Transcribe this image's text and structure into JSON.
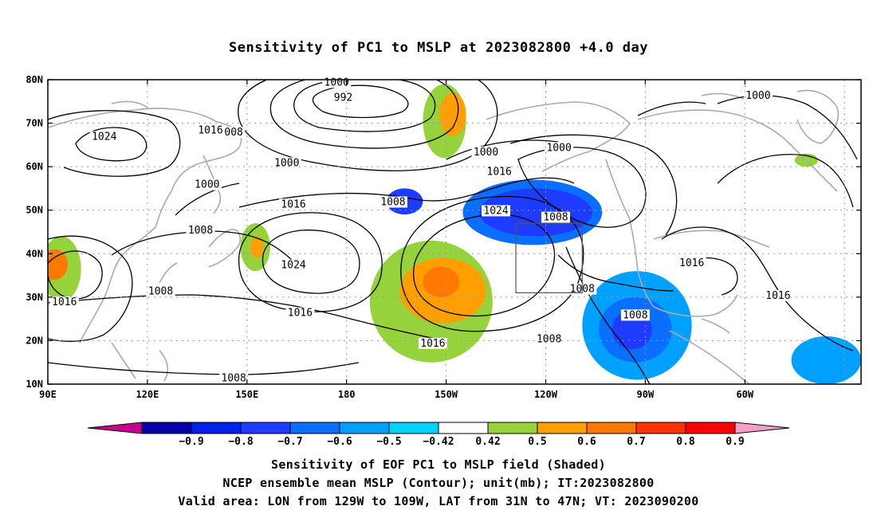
{
  "title": "Sensitivity of PC1 to MSLP at 2023082800 +4.0 day",
  "lat_labels": [
    "80N",
    "70N",
    "60N",
    "50N",
    "40N",
    "30N",
    "20N",
    "10N"
  ],
  "lon_labels": [
    "90E",
    "120E",
    "150E",
    "180",
    "150W",
    "120W",
    "90W",
    "60W"
  ],
  "contour_labels": [
    {
      "t": "1000",
      "lon": 177,
      "lat": 79
    },
    {
      "t": "992",
      "lon": 179,
      "lat": 75.5
    },
    {
      "t": "1016",
      "lon": 139,
      "lat": 68
    },
    {
      "t": "008",
      "lon": 146,
      "lat": 67.5
    },
    {
      "t": "1024",
      "lon": 107,
      "lat": 66.5
    },
    {
      "t": "1000",
      "lon": 162,
      "lat": 60.5
    },
    {
      "t": "1000",
      "lon": 138,
      "lat": 55.5
    },
    {
      "t": "1016",
      "lon": 164,
      "lat": 51
    },
    {
      "t": "1008",
      "lon": 194,
      "lat": 51.5
    },
    {
      "t": "1008",
      "lon": 136,
      "lat": 45
    },
    {
      "t": "1024",
      "lon": 164,
      "lat": 37
    },
    {
      "t": "1016",
      "lon": 95,
      "lat": 28.5
    },
    {
      "t": "1008",
      "lon": 124,
      "lat": 31
    },
    {
      "t": "1016",
      "lon": 166,
      "lat": 26
    },
    {
      "t": "1000",
      "lon": 222,
      "lat": 63
    },
    {
      "t": "1016",
      "lon": 226,
      "lat": 58.5
    },
    {
      "t": "1024",
      "lon": 225,
      "lat": 49.5
    },
    {
      "t": "1016",
      "lon": 206,
      "lat": 19
    },
    {
      "t": "1008",
      "lon": 146,
      "lat": 11
    },
    {
      "t": "1000",
      "lon": 244,
      "lat": 64
    },
    {
      "t": "1008",
      "lon": 243,
      "lat": 48
    },
    {
      "t": "1008",
      "lon": 251,
      "lat": 31.5
    },
    {
      "t": "1008",
      "lon": 241,
      "lat": 20
    },
    {
      "t": "1008",
      "lon": 267,
      "lat": 25.5
    },
    {
      "t": "1016",
      "lon": 284,
      "lat": 37.5
    },
    {
      "t": "1016",
      "lon": 310,
      "lat": 30
    },
    {
      "t": "1000",
      "lon": 304,
      "lat": 76
    }
  ],
  "colorbar": {
    "labels": [
      "−0.9",
      "−0.8",
      "−0.7",
      "−0.6",
      "−0.5",
      "−0.42",
      "0.42",
      "0.5",
      "0.6",
      "0.7",
      "0.8",
      "0.9"
    ],
    "colors": [
      "#0000aa",
      "#0022e8",
      "#1e3cff",
      "#0a6eff",
      "#00a0ff",
      "#00d2ff",
      "#ffffff",
      "#96d23c",
      "#ffa000",
      "#ff7800",
      "#ff3200",
      "#ff0000"
    ],
    "low_color": "#c8008c",
    "high_color": "#f5a0c8"
  },
  "shaded_regions": [
    {
      "c": "#96d23c",
      "lon": [
        203,
        216
      ],
      "lat": [
        62,
        79
      ]
    },
    {
      "c": "#ffa000",
      "lon": [
        208,
        216
      ],
      "lat": [
        67,
        77
      ]
    },
    {
      "c": "#96d23c",
      "lon": [
        148,
        157
      ],
      "lat": [
        36,
        47
      ]
    },
    {
      "c": "#ffa000",
      "lon": [
        151,
        155
      ],
      "lat": [
        39,
        44
      ]
    },
    {
      "c": "#96d23c",
      "lon": [
        88,
        100
      ],
      "lat": [
        29,
        44
      ]
    },
    {
      "c": "#ff7800",
      "lon": [
        88,
        96
      ],
      "lat": [
        34,
        41
      ]
    },
    {
      "c": "#96d23c",
      "lon": [
        187,
        224
      ],
      "lat": [
        15,
        43
      ]
    },
    {
      "c": "#ffa000",
      "lon": [
        196,
        222
      ],
      "lat": [
        24,
        39
      ]
    },
    {
      "c": "#ff7800",
      "lon": [
        203,
        214
      ],
      "lat": [
        30,
        37
      ]
    },
    {
      "c": "#1e3cff",
      "lon": [
        192,
        203
      ],
      "lat": [
        49,
        55
      ]
    },
    {
      "c": "#0a6eff",
      "lon": [
        215,
        257
      ],
      "lat": [
        42,
        57
      ]
    },
    {
      "c": "#1e3cff",
      "lon": [
        220,
        254
      ],
      "lat": [
        44,
        55
      ]
    },
    {
      "c": "#00a0ff",
      "lon": [
        251,
        284
      ],
      "lat": [
        11,
        36
      ]
    },
    {
      "c": "#0a6eff",
      "lon": [
        256,
        278
      ],
      "lat": [
        15,
        30
      ]
    },
    {
      "c": "#1e3cff",
      "lon": [
        260,
        272
      ],
      "lat": [
        18,
        27
      ]
    },
    {
      "c": "#00a0ff",
      "lon": [
        314,
        335
      ],
      "lat": [
        10,
        21
      ]
    },
    {
      "c": "#96d23c",
      "lon": [
        315,
        322
      ],
      "lat": [
        60,
        63
      ]
    }
  ],
  "captions": [
    "Sensitivity of EOF PC1 to MSLP field (Shaded)",
    "NCEP ensemble mean MSLP (Contour); unit(mb); IT:2023082800",
    "Valid area: LON from 129W to 109W, LAT from 31N to 47N; VT: 2023090200"
  ]
}
